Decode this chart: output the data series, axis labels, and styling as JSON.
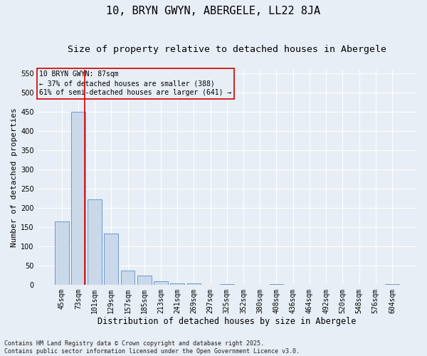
{
  "title": "10, BRYN GWYN, ABERGELE, LL22 8JA",
  "subtitle": "Size of property relative to detached houses in Abergele",
  "xlabel": "Distribution of detached houses by size in Abergele",
  "ylabel": "Number of detached properties",
  "categories": [
    "45sqm",
    "73sqm",
    "101sqm",
    "129sqm",
    "157sqm",
    "185sqm",
    "213sqm",
    "241sqm",
    "269sqm",
    "297sqm",
    "325sqm",
    "352sqm",
    "380sqm",
    "408sqm",
    "436sqm",
    "464sqm",
    "492sqm",
    "520sqm",
    "548sqm",
    "576sqm",
    "604sqm"
  ],
  "values": [
    165,
    450,
    223,
    133,
    37,
    25,
    10,
    5,
    5,
    0,
    3,
    0,
    0,
    3,
    0,
    0,
    0,
    0,
    0,
    0,
    3
  ],
  "bar_color": "#c9d9ea",
  "bar_edge_color": "#5b8ec4",
  "bg_color": "#e8eef5",
  "grid_color": "#ffffff",
  "annotation_line1": "10 BRYN GWYN: 87sqm",
  "annotation_line2": "← 37% of detached houses are smaller (388)",
  "annotation_line3": "61% of semi-detached houses are larger (641) →",
  "annotation_box_color": "#cc0000",
  "vline_color": "#cc0000",
  "vline_pos": 1.4,
  "ylim": [
    0,
    560
  ],
  "yticks": [
    0,
    50,
    100,
    150,
    200,
    250,
    300,
    350,
    400,
    450,
    500,
    550
  ],
  "footer_line1": "Contains HM Land Registry data © Crown copyright and database right 2025.",
  "footer_line2": "Contains public sector information licensed under the Open Government Licence v3.0.",
  "title_fontsize": 11,
  "subtitle_fontsize": 9.5,
  "xlabel_fontsize": 8.5,
  "ylabel_fontsize": 8,
  "tick_fontsize": 7,
  "annotation_fontsize": 7,
  "footer_fontsize": 6
}
